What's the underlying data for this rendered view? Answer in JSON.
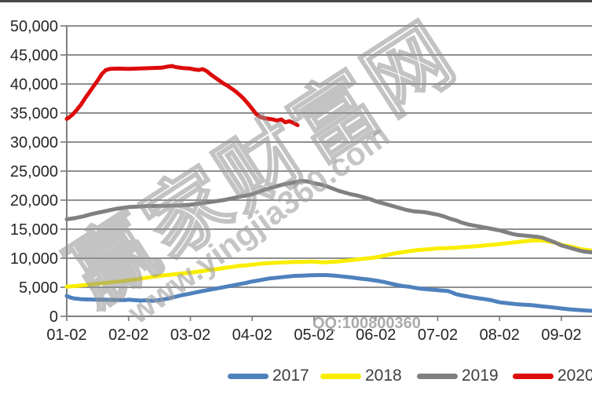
{
  "watermarks": {
    "brand_cn": "赢家财富网",
    "site_url": "www.yingjia360.com",
    "qq_line": "QQ:100800360",
    "color": "#999999"
  },
  "colors": {
    "axis": "#7F7F7F",
    "label_text": "#262626",
    "top_border": "#474747",
    "background": "#FFFFFF"
  },
  "chart_data": {
    "type": "line",
    "title": "",
    "xlabel": "",
    "ylabel": "",
    "grid": true,
    "legend_position": "bottom",
    "y_axis": {
      "ylim": [
        0,
        50000
      ],
      "tick_values": [
        50000,
        45000,
        40000,
        35000,
        30000,
        25000,
        20000,
        15000,
        10000,
        5000,
        0
      ],
      "tick_labels": [
        "50,000",
        "45,000",
        "40,000",
        "35,000",
        "30,000",
        "25,000",
        "20,000",
        "15,000",
        "10,000",
        "5,000",
        "0"
      ]
    },
    "x_axis": {
      "xlim_days": [
        0,
        255
      ],
      "tick_days": [
        0,
        30,
        60,
        90,
        120,
        150,
        180,
        210,
        240
      ],
      "tick_labels": [
        "01-02",
        "02-02",
        "03-02",
        "04-02",
        "05-02",
        "06-02",
        "07-02",
        "08-02",
        "09-02"
      ]
    },
    "series": [
      {
        "name": "2017",
        "color": "#4F81BD",
        "points": [
          [
            0,
            3500
          ],
          [
            2,
            3200
          ],
          [
            4,
            3050
          ],
          [
            7,
            2950
          ],
          [
            10,
            2900
          ],
          [
            13,
            2880
          ],
          [
            16,
            2860
          ],
          [
            19,
            2850
          ],
          [
            22,
            2830
          ],
          [
            25,
            2800
          ],
          [
            28,
            2780
          ],
          [
            30,
            2870
          ],
          [
            32,
            2800
          ],
          [
            34,
            2750
          ],
          [
            36,
            2700
          ],
          [
            38,
            2760
          ],
          [
            40,
            2700
          ],
          [
            42,
            2680
          ],
          [
            44,
            2750
          ],
          [
            46,
            2850
          ],
          [
            49,
            3050
          ],
          [
            52,
            3300
          ],
          [
            56,
            3650
          ],
          [
            60,
            3900
          ],
          [
            63,
            4150
          ],
          [
            66,
            4350
          ],
          [
            69,
            4550
          ],
          [
            72,
            4750
          ],
          [
            75,
            4950
          ],
          [
            78,
            5150
          ],
          [
            81,
            5350
          ],
          [
            84,
            5550
          ],
          [
            87,
            5750
          ],
          [
            90,
            6000
          ],
          [
            94,
            6250
          ],
          [
            98,
            6500
          ],
          [
            102,
            6650
          ],
          [
            106,
            6800
          ],
          [
            110,
            6950
          ],
          [
            114,
            7000
          ],
          [
            118,
            7050
          ],
          [
            122,
            7100
          ],
          [
            126,
            7100
          ],
          [
            130,
            7000
          ],
          [
            134,
            6850
          ],
          [
            138,
            6700
          ],
          [
            142,
            6500
          ],
          [
            146,
            6350
          ],
          [
            150,
            6150
          ],
          [
            154,
            5900
          ],
          [
            157,
            5650
          ],
          [
            160,
            5400
          ],
          [
            163,
            5200
          ],
          [
            166,
            5100
          ],
          [
            169,
            4900
          ],
          [
            172,
            4750
          ],
          [
            175,
            4650
          ],
          [
            178,
            4550
          ],
          [
            180,
            4500
          ],
          [
            183,
            4400
          ],
          [
            185,
            4350
          ],
          [
            187,
            4100
          ],
          [
            189,
            3800
          ],
          [
            191,
            3650
          ],
          [
            194,
            3450
          ],
          [
            197,
            3250
          ],
          [
            200,
            3100
          ],
          [
            203,
            2950
          ],
          [
            206,
            2750
          ],
          [
            210,
            2400
          ],
          [
            214,
            2250
          ],
          [
            218,
            2100
          ],
          [
            222,
            2000
          ],
          [
            226,
            1900
          ],
          [
            230,
            1750
          ],
          [
            234,
            1600
          ],
          [
            238,
            1450
          ],
          [
            240,
            1350
          ],
          [
            244,
            1200
          ],
          [
            248,
            1100
          ],
          [
            252,
            1000
          ],
          [
            255,
            950
          ]
        ]
      },
      {
        "name": "2018",
        "color": "#F9EE00",
        "points": [
          [
            0,
            5100
          ],
          [
            4,
            5200
          ],
          [
            8,
            5350
          ],
          [
            12,
            5500
          ],
          [
            16,
            5650
          ],
          [
            20,
            5800
          ],
          [
            24,
            5950
          ],
          [
            28,
            6100
          ],
          [
            30,
            6200
          ],
          [
            34,
            6400
          ],
          [
            38,
            6600
          ],
          [
            42,
            6800
          ],
          [
            46,
            7000
          ],
          [
            50,
            7150
          ],
          [
            54,
            7300
          ],
          [
            58,
            7450
          ],
          [
            60,
            7500
          ],
          [
            64,
            7700
          ],
          [
            68,
            7900
          ],
          [
            72,
            8100
          ],
          [
            76,
            8300
          ],
          [
            80,
            8500
          ],
          [
            84,
            8700
          ],
          [
            88,
            8800
          ],
          [
            90,
            8900
          ],
          [
            94,
            9050
          ],
          [
            98,
            9150
          ],
          [
            102,
            9250
          ],
          [
            106,
            9300
          ],
          [
            110,
            9350
          ],
          [
            114,
            9350
          ],
          [
            118,
            9400
          ],
          [
            120,
            9400
          ],
          [
            124,
            9300
          ],
          [
            128,
            9350
          ],
          [
            132,
            9450
          ],
          [
            136,
            9600
          ],
          [
            140,
            9750
          ],
          [
            144,
            9900
          ],
          [
            148,
            10050
          ],
          [
            150,
            10150
          ],
          [
            154,
            10450
          ],
          [
            158,
            10750
          ],
          [
            162,
            11000
          ],
          [
            166,
            11200
          ],
          [
            170,
            11400
          ],
          [
            174,
            11500
          ],
          [
            177,
            11600
          ],
          [
            180,
            11700
          ],
          [
            184,
            11750
          ],
          [
            188,
            11800
          ],
          [
            192,
            11900
          ],
          [
            196,
            12000
          ],
          [
            200,
            12100
          ],
          [
            204,
            12250
          ],
          [
            208,
            12350
          ],
          [
            210,
            12450
          ],
          [
            214,
            12600
          ],
          [
            218,
            12750
          ],
          [
            222,
            12900
          ],
          [
            226,
            13050
          ],
          [
            229,
            13100
          ],
          [
            232,
            13000
          ],
          [
            235,
            12800
          ],
          [
            238,
            12600
          ],
          [
            240,
            12300
          ],
          [
            243,
            12100
          ],
          [
            246,
            11900
          ],
          [
            249,
            11600
          ],
          [
            252,
            11450
          ],
          [
            255,
            11300
          ]
        ]
      },
      {
        "name": "2019",
        "color": "#808080",
        "points": [
          [
            0,
            16700
          ],
          [
            4,
            16900
          ],
          [
            8,
            17200
          ],
          [
            12,
            17600
          ],
          [
            16,
            17900
          ],
          [
            20,
            18200
          ],
          [
            24,
            18500
          ],
          [
            28,
            18700
          ],
          [
            30,
            18800
          ],
          [
            35,
            18900
          ],
          [
            40,
            19000
          ],
          [
            45,
            19000
          ],
          [
            50,
            19050
          ],
          [
            55,
            19100
          ],
          [
            60,
            19200
          ],
          [
            64,
            19400
          ],
          [
            68,
            19600
          ],
          [
            72,
            19800
          ],
          [
            76,
            20000
          ],
          [
            80,
            20300
          ],
          [
            84,
            20600
          ],
          [
            87,
            20800
          ],
          [
            90,
            21000
          ],
          [
            93,
            21400
          ],
          [
            96,
            21800
          ],
          [
            99,
            22100
          ],
          [
            102,
            22400
          ],
          [
            105,
            22700
          ],
          [
            108,
            22900
          ],
          [
            111,
            23100
          ],
          [
            114,
            23300
          ],
          [
            117,
            23200
          ],
          [
            120,
            22900
          ],
          [
            123,
            22700
          ],
          [
            126,
            22400
          ],
          [
            129,
            22000
          ],
          [
            132,
            21600
          ],
          [
            135,
            21300
          ],
          [
            138,
            21000
          ],
          [
            141,
            20800
          ],
          [
            144,
            20500
          ],
          [
            147,
            20200
          ],
          [
            150,
            19800
          ],
          [
            153,
            19500
          ],
          [
            156,
            19200
          ],
          [
            159,
            18900
          ],
          [
            162,
            18600
          ],
          [
            165,
            18300
          ],
          [
            168,
            18100
          ],
          [
            171,
            18000
          ],
          [
            174,
            17900
          ],
          [
            177,
            17700
          ],
          [
            180,
            17500
          ],
          [
            183,
            17200
          ],
          [
            186,
            16800
          ],
          [
            189,
            16500
          ],
          [
            192,
            16100
          ],
          [
            195,
            15800
          ],
          [
            198,
            15600
          ],
          [
            201,
            15400
          ],
          [
            204,
            15200
          ],
          [
            207,
            15000
          ],
          [
            210,
            14800
          ],
          [
            213,
            14500
          ],
          [
            216,
            14200
          ],
          [
            219,
            14000
          ],
          [
            222,
            13900
          ],
          [
            225,
            13800
          ],
          [
            228,
            13700
          ],
          [
            231,
            13500
          ],
          [
            234,
            13100
          ],
          [
            237,
            12700
          ],
          [
            240,
            12200
          ],
          [
            243,
            11900
          ],
          [
            246,
            11600
          ],
          [
            249,
            11300
          ],
          [
            252,
            11100
          ],
          [
            255,
            11000
          ]
        ]
      },
      {
        "name": "2020",
        "color": "#DD0B0B",
        "points": [
          [
            0,
            34000
          ],
          [
            1,
            34200
          ],
          [
            3,
            34800
          ],
          [
            5,
            35600
          ],
          [
            7,
            36500
          ],
          [
            9,
            37600
          ],
          [
            11,
            38600
          ],
          [
            13,
            39600
          ],
          [
            15,
            40600
          ],
          [
            17,
            41700
          ],
          [
            19,
            42400
          ],
          [
            21,
            42600
          ],
          [
            25,
            42650
          ],
          [
            30,
            42600
          ],
          [
            34,
            42650
          ],
          [
            38,
            42700
          ],
          [
            42,
            42750
          ],
          [
            46,
            42800
          ],
          [
            49,
            43000
          ],
          [
            51,
            43100
          ],
          [
            53,
            42900
          ],
          [
            56,
            42750
          ],
          [
            60,
            42650
          ],
          [
            62,
            42500
          ],
          [
            64,
            42400
          ],
          [
            66,
            42550
          ],
          [
            68,
            42200
          ],
          [
            70,
            41600
          ],
          [
            72,
            41100
          ],
          [
            74,
            40600
          ],
          [
            76,
            40100
          ],
          [
            78,
            39700
          ],
          [
            80,
            39200
          ],
          [
            82,
            38700
          ],
          [
            84,
            38100
          ],
          [
            86,
            37400
          ],
          [
            88,
            36600
          ],
          [
            90,
            35700
          ],
          [
            92,
            34800
          ],
          [
            94,
            34300
          ],
          [
            96,
            34100
          ],
          [
            98,
            34000
          ],
          [
            100,
            33900
          ],
          [
            102,
            33700
          ],
          [
            104,
            33900
          ],
          [
            106,
            33400
          ],
          [
            108,
            33600
          ],
          [
            110,
            33300
          ],
          [
            112,
            32900
          ]
        ]
      }
    ]
  }
}
